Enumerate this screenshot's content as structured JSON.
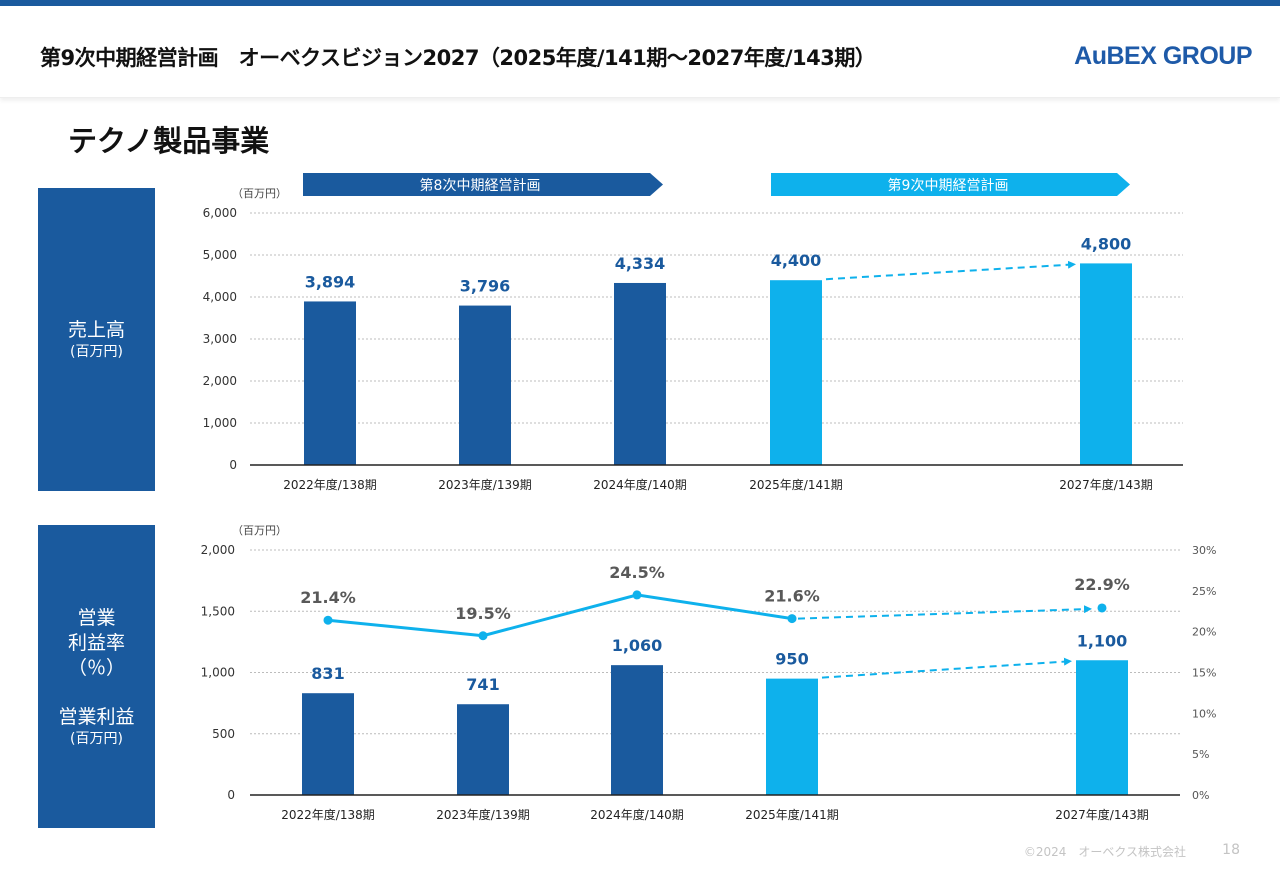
{
  "header": {
    "title": "第9次中期経営計画　オーベクスビジョン2027（2025年度/141期～2027年度/143期）",
    "logo": "AuBEX GROUP"
  },
  "section_title": "テクノ製品事業",
  "side_boxes": {
    "sales": {
      "line1": "売上高",
      "line2": "(百万円)"
    },
    "profit": {
      "line1": "営業",
      "line2": "利益率",
      "line3": "（％）",
      "line4": "営業利益",
      "line5": "(百万円)"
    }
  },
  "plan_banners": [
    {
      "label": "第8次中期経営計画",
      "color": "#1a5a9e"
    },
    {
      "label": "第9次中期経営計画",
      "color": "#0eb1ec"
    }
  ],
  "colors": {
    "actual": "#1a5a9e",
    "plan": "#0eb1ec",
    "line": "#0eb1ec"
  },
  "chart_data": [
    {
      "type": "bar",
      "unit_label": "（百万円）",
      "categories": [
        "2022年度/138期",
        "2023年度/139期",
        "2024年度/140期",
        "2025年度/141期",
        "2027年度/143期"
      ],
      "values": [
        3894,
        3796,
        4334,
        4400,
        4800
      ],
      "value_labels": [
        "3,894",
        "3,796",
        "4,334",
        "4,400",
        "4,800"
      ],
      "ylim": [
        0,
        6000
      ],
      "yticks": [
        "0",
        "1,000",
        "2,000",
        "3,000",
        "4,000",
        "5,000",
        "6,000"
      ],
      "grid": true,
      "trend_arrow": {
        "from": "2025年度/141期",
        "to": "2027年度/143期",
        "style": "dashed"
      }
    },
    {
      "type": "bar+line",
      "unit_label": "（百万円）",
      "categories": [
        "2022年度/138期",
        "2023年度/139期",
        "2024年度/140期",
        "2025年度/141期",
        "2027年度/143期"
      ],
      "bar_values": [
        831,
        741,
        1060,
        950,
        1100
      ],
      "bar_value_labels": [
        "831",
        "741",
        "1,060",
        "950",
        "1,100"
      ],
      "line_values": [
        21.4,
        19.5,
        24.5,
        21.6,
        22.9
      ],
      "line_value_labels": [
        "21.4%",
        "19.5%",
        "24.5%",
        "21.6%",
        "22.9%"
      ],
      "ylim_left": [
        0,
        2000
      ],
      "yticks_left": [
        "0",
        "500",
        "1,000",
        "1,500",
        "2,000"
      ],
      "ylim_right": [
        0,
        30
      ],
      "yticks_right": [
        "0%",
        "5%",
        "10%",
        "15%",
        "20%",
        "25%",
        "30%"
      ],
      "grid": true,
      "trend_arrows": {
        "from": "2025年度/141期",
        "to": "2027年度/143期",
        "style": "dashed"
      }
    }
  ],
  "footer": {
    "copyright": "©2024　オーベクス株式会社",
    "page": "18"
  }
}
